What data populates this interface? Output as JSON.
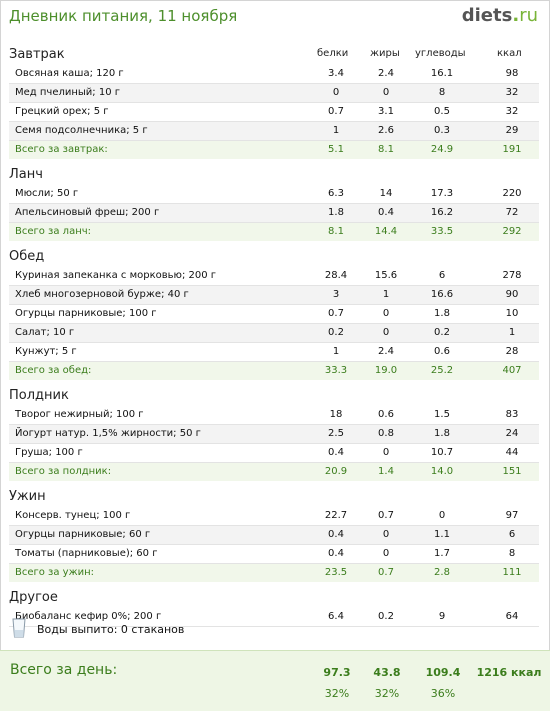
{
  "header": {
    "title": "Дневник питания, 11 ноября",
    "logo_main": "diets",
    "logo_dot": ".",
    "logo_tld": "ru"
  },
  "columns": [
    "белки",
    "жиры",
    "углеводы",
    "ккал"
  ],
  "sections": [
    {
      "title": "Завтрак",
      "items": [
        [
          "Овсяная каша; 120 г",
          "3.4",
          "2.4",
          "16.1",
          "98"
        ],
        [
          "Мед пчелиный; 10 г",
          "0",
          "0",
          "8",
          "32"
        ],
        [
          "Грецкий орех; 5 г",
          "0.7",
          "3.1",
          "0.5",
          "32"
        ],
        [
          "Семя подсолнечника; 5 г",
          "1",
          "2.6",
          "0.3",
          "29"
        ]
      ],
      "total": [
        "Всего за завтрак:",
        "5.1",
        "8.1",
        "24.9",
        "191"
      ]
    },
    {
      "title": "Ланч",
      "items": [
        [
          "Мюсли; 50 г",
          "6.3",
          "14",
          "17.3",
          "220"
        ],
        [
          "Апельсиновый фреш; 200 г",
          "1.8",
          "0.4",
          "16.2",
          "72"
        ]
      ],
      "total": [
        "Всего за ланч:",
        "8.1",
        "14.4",
        "33.5",
        "292"
      ]
    },
    {
      "title": "Обед",
      "items": [
        [
          "Куриная запеканка с морковью; 200 г",
          "28.4",
          "15.6",
          "6",
          "278"
        ],
        [
          "Хлеб многозерновой бурже; 40 г",
          "3",
          "1",
          "16.6",
          "90"
        ],
        [
          "Огурцы парниковые; 100 г",
          "0.7",
          "0",
          "1.8",
          "10"
        ],
        [
          "Салат; 10 г",
          "0.2",
          "0",
          "0.2",
          "1"
        ],
        [
          "Кунжут; 5 г",
          "1",
          "2.4",
          "0.6",
          "28"
        ]
      ],
      "total": [
        "Всего за обед:",
        "33.3",
        "19.0",
        "25.2",
        "407"
      ]
    },
    {
      "title": "Полдник",
      "items": [
        [
          "Творог нежирный; 100 г",
          "18",
          "0.6",
          "1.5",
          "83"
        ],
        [
          "Йогурт натур. 1,5% жирности; 50 г",
          "2.5",
          "0.8",
          "1.8",
          "24"
        ],
        [
          "Груша; 100 г",
          "0.4",
          "0",
          "10.7",
          "44"
        ]
      ],
      "total": [
        "Всего за полдник:",
        "20.9",
        "1.4",
        "14.0",
        "151"
      ]
    },
    {
      "title": "Ужин",
      "items": [
        [
          "Консерв. тунец; 100 г",
          "22.7",
          "0.7",
          "0",
          "97"
        ],
        [
          "Огурцы парниковые; 60 г",
          "0.4",
          "0",
          "1.1",
          "6"
        ],
        [
          "Томаты (парниковые); 60 г",
          "0.4",
          "0",
          "1.7",
          "8"
        ]
      ],
      "total": [
        "Всего за ужин:",
        "23.5",
        "0.7",
        "2.8",
        "111"
      ]
    },
    {
      "title": "Другое",
      "items": [
        [
          "Биобаланс кефир 0%; 200 г",
          "6.4",
          "0.2",
          "9",
          "64"
        ]
      ],
      "total": null
    }
  ],
  "water": {
    "label": "Воды выпито: 0 стаканов"
  },
  "day_total": {
    "label": "Всего за день:",
    "values": [
      "97.3",
      "43.8",
      "109.4",
      "1216 ккал"
    ],
    "percents": [
      "32%",
      "32%",
      "36%"
    ]
  }
}
